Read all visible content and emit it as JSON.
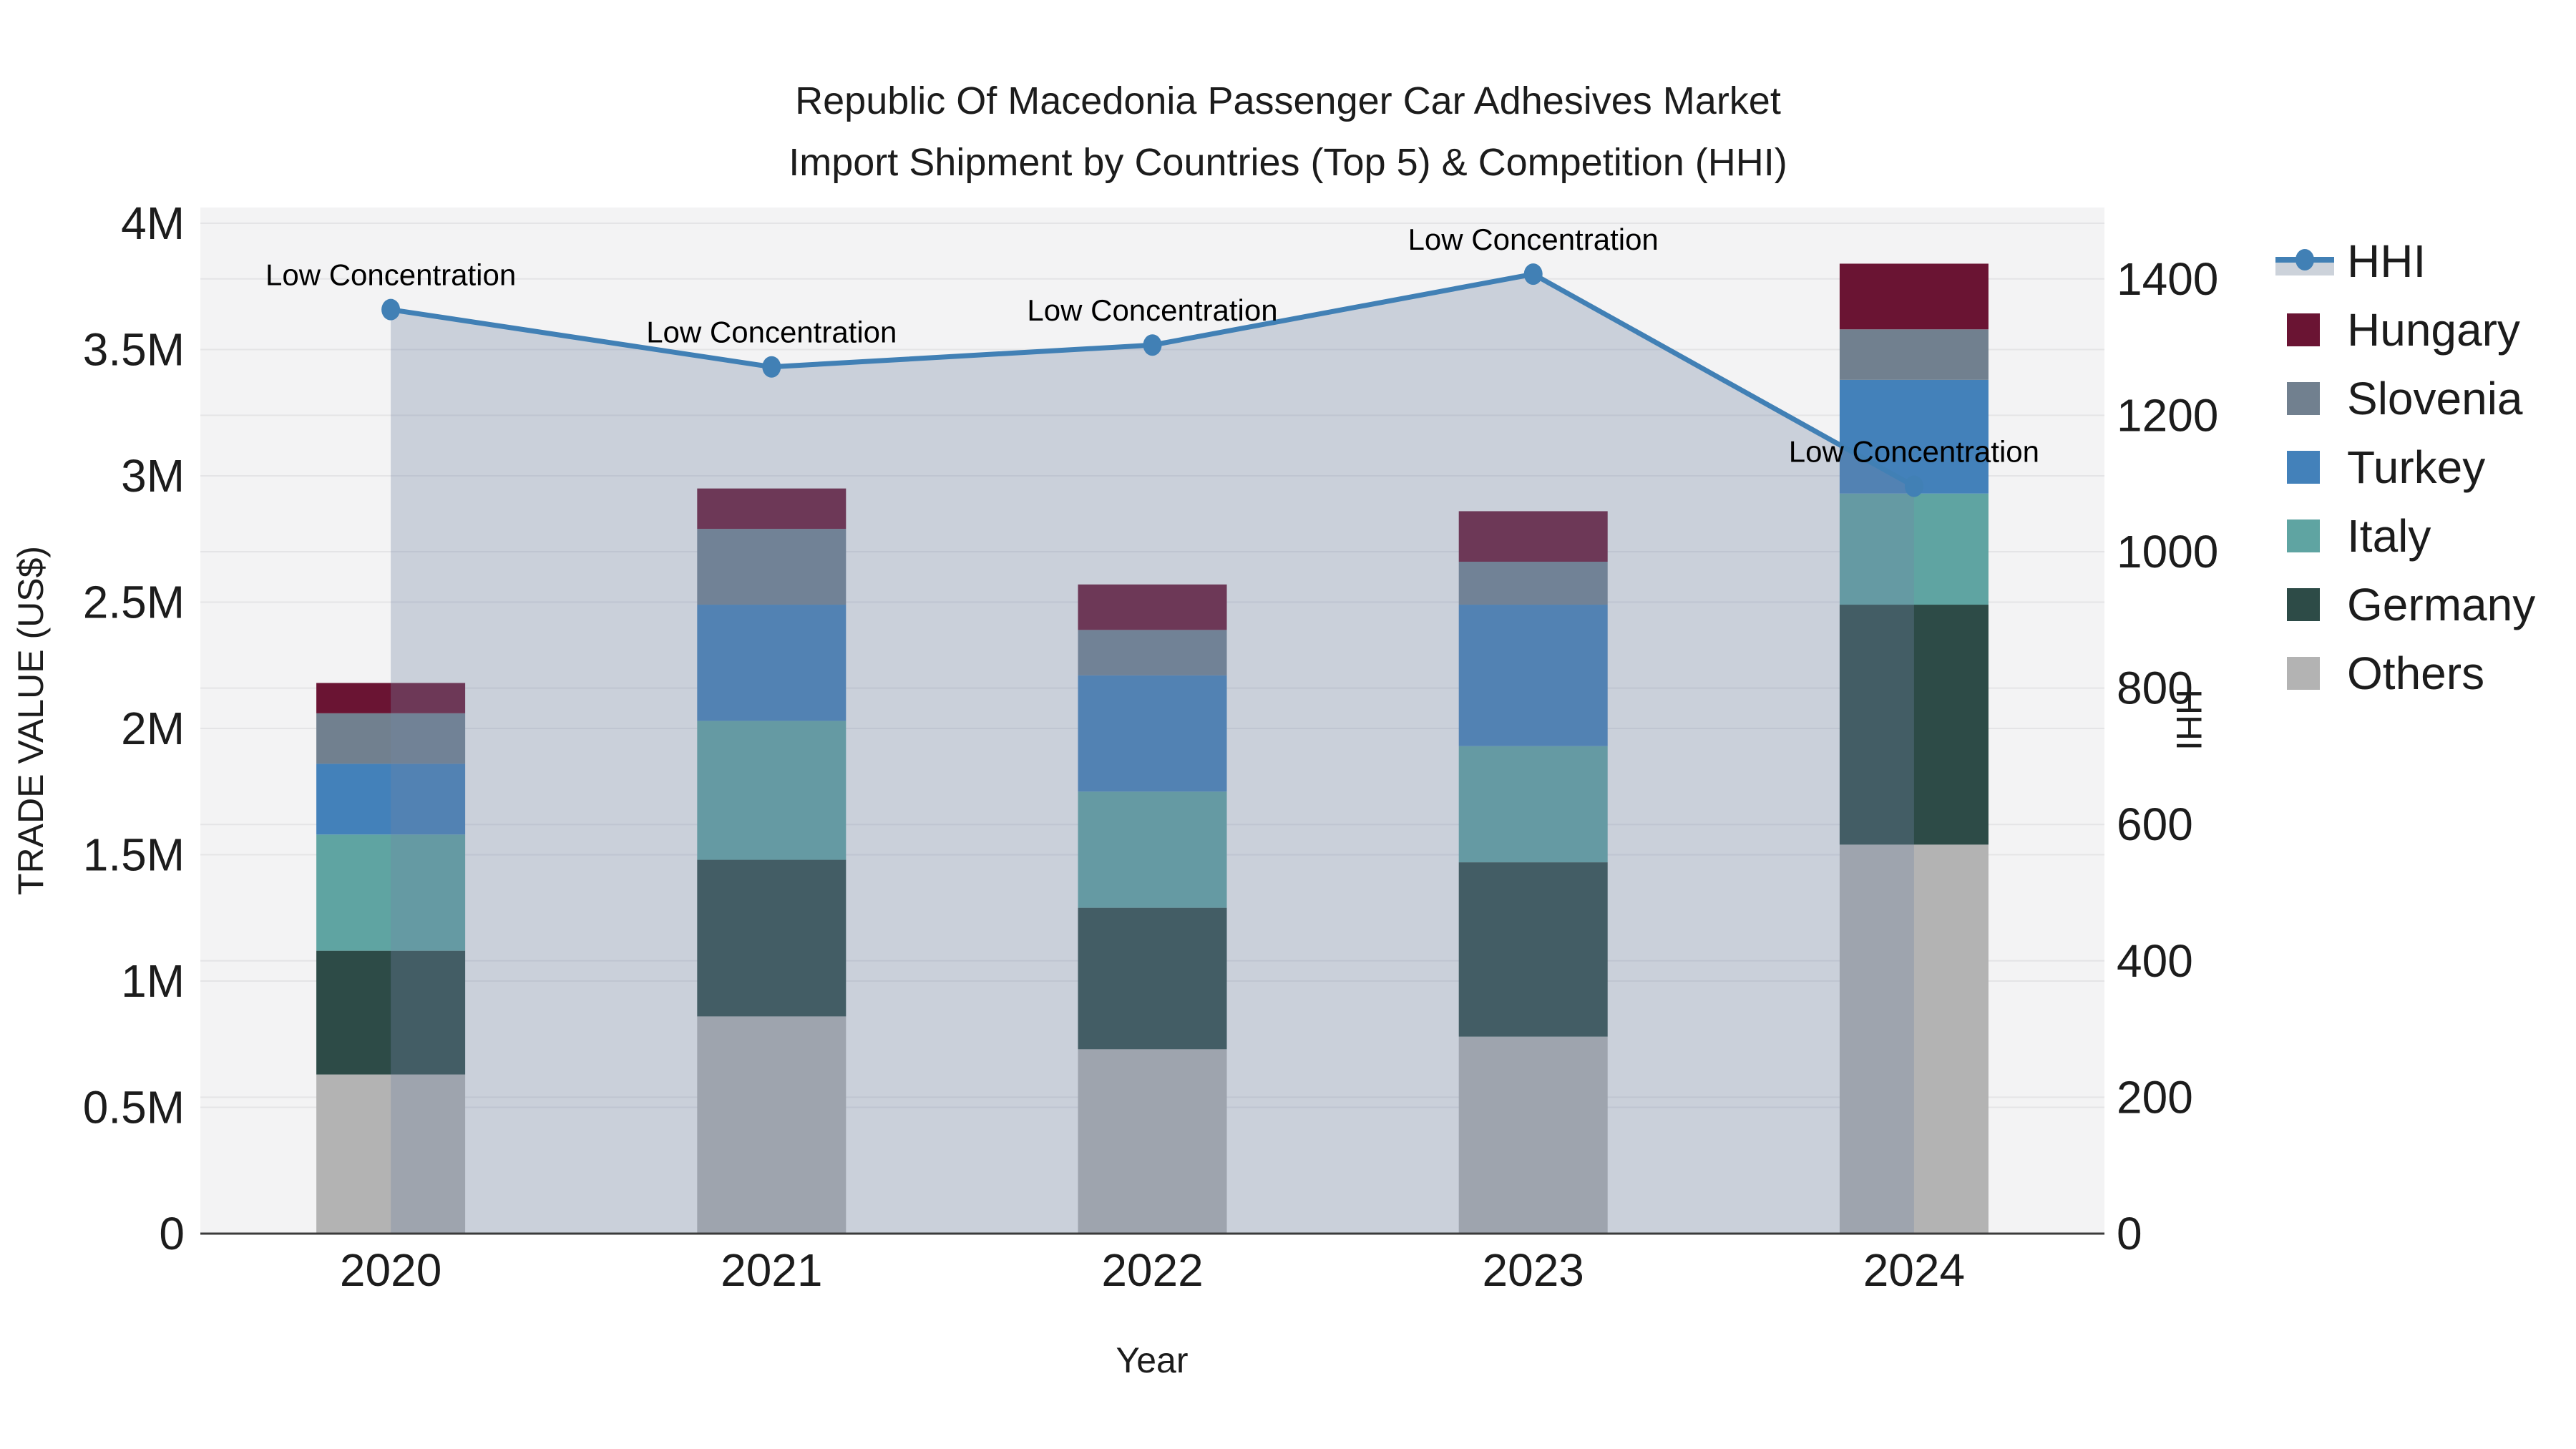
{
  "title": {
    "line1": "Republic Of Macedonia Passenger Car Adhesives Market",
    "line2": "Import Shipment by Countries (Top 5) & Competition (HHI)"
  },
  "chart_data": {
    "type": "combo-stacked-bar-line",
    "categories": [
      "2020",
      "2021",
      "2022",
      "2023",
      "2024"
    ],
    "series": [
      {
        "name": "Others",
        "color": "#b3b3b3",
        "values_usd": [
          630000,
          860000,
          730000,
          780000,
          1540000
        ]
      },
      {
        "name": "Germany",
        "color": "#2d4b47",
        "values_usd": [
          490000,
          620000,
          560000,
          690000,
          950000
        ]
      },
      {
        "name": "Italy",
        "color": "#5fa4a2",
        "values_usd": [
          460000,
          550000,
          460000,
          460000,
          440000
        ]
      },
      {
        "name": "Turkey",
        "color": "#4381ba",
        "values_usd": [
          280000,
          460000,
          460000,
          560000,
          450000
        ]
      },
      {
        "name": "Slovenia",
        "color": "#71808f",
        "values_usd": [
          200000,
          300000,
          180000,
          170000,
          200000
        ]
      },
      {
        "name": "Hungary",
        "color": "#6a1433",
        "values_usd": [
          120000,
          160000,
          180000,
          200000,
          260000
        ]
      }
    ],
    "line": {
      "name": "HHI",
      "color": "#4180b5",
      "area_fill": "rgba(115,134,165,0.32)",
      "values": [
        1355,
        1271,
        1303,
        1407,
        1096
      ],
      "annotations": [
        "Low Concentration",
        "Low Concentration",
        "Low Concentration",
        "Low Concentration",
        "Low Concentration"
      ]
    },
    "left_axis": {
      "title": "TRADE VALUE (US$)",
      "tick_labels": [
        "0",
        "0.5M",
        "1M",
        "1.5M",
        "2M",
        "2.5M",
        "3M",
        "3.5M",
        "4M"
      ],
      "tick_values": [
        0,
        500000,
        1000000,
        1500000,
        2000000,
        2500000,
        3000000,
        3500000,
        4000000
      ]
    },
    "right_axis": {
      "title": "HHI",
      "tick_labels": [
        "0",
        "200",
        "400",
        "600",
        "800",
        "1000",
        "1200",
        "1400"
      ],
      "tick_values": [
        0,
        200,
        400,
        600,
        800,
        1000,
        1200,
        1400
      ]
    },
    "x_axis": {
      "title": "Year"
    },
    "legend": [
      {
        "label": "HHI",
        "kind": "line"
      },
      {
        "label": "Hungary",
        "kind": "square",
        "color": "#6a1433"
      },
      {
        "label": "Slovenia",
        "kind": "square",
        "color": "#71808f"
      },
      {
        "label": "Turkey",
        "kind": "square",
        "color": "#4381ba"
      },
      {
        "label": "Italy",
        "kind": "square",
        "color": "#5fa4a2"
      },
      {
        "label": "Germany",
        "kind": "square",
        "color": "#2d4b47"
      },
      {
        "label": "Others",
        "kind": "square",
        "color": "#b3b3b3"
      }
    ],
    "colors": {
      "plot_background": "#f3f3f4",
      "gridline": "#e4e4e6",
      "axis_line": "#3b3b3b",
      "text": "#1c1c1c",
      "legend_line_band": "#ccd2da"
    }
  }
}
